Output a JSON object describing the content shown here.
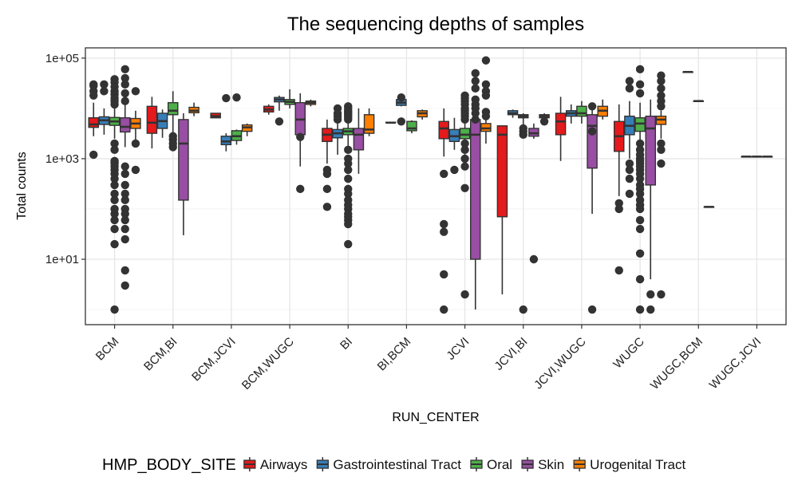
{
  "chart_data": {
    "type": "boxplot",
    "title": "The sequencing depths of samples",
    "xlabel": "RUN_CENTER",
    "ylabel": "Total counts",
    "y_scale": "log10",
    "ylim": [
      0.5,
      160000
    ],
    "y_ticks": [
      10,
      1000,
      100000
    ],
    "y_tick_labels": [
      "1e+01",
      "1e+03",
      "1e+05"
    ],
    "grid": true,
    "legend": {
      "title": "HMP_BODY_SITE",
      "position": "bottom",
      "entries": [
        {
          "name": "Airways",
          "color": "#e41a1c"
        },
        {
          "name": "Gastrointestinal Tract",
          "color": "#377eb8"
        },
        {
          "name": "Oral",
          "color": "#4daf4a"
        },
        {
          "name": "Skin",
          "color": "#984ea3"
        },
        {
          "name": "Urogenital Tract",
          "color": "#ff7f00"
        }
      ]
    },
    "categories": [
      "BCM",
      "BCM,BI",
      "BCM,JCVI",
      "BCM,WUGC",
      "BI",
      "BI,BCM",
      "JCVI",
      "JCVI,BI",
      "JCVI,WUGC",
      "WUGC",
      "WUGC,BCM",
      "WUGC,JCVI"
    ],
    "groups": [
      {
        "category": "BCM",
        "boxes": [
          {
            "site": "Airways",
            "whisker_low": 2800,
            "q1": 4200,
            "median": 4800,
            "q3": 6500,
            "whisker_high": 13000,
            "outliers": [
              1200,
              30000,
              28000,
              22000,
              18000
            ]
          },
          {
            "site": "Gastrointestinal Tract",
            "whisker_low": 3000,
            "q1": 4800,
            "median": 5800,
            "q3": 6800,
            "whisker_high": 10000,
            "outliers": [
              30000,
              22000
            ]
          },
          {
            "site": "Oral",
            "whisker_low": 2500,
            "q1": 4600,
            "median": 5500,
            "q3": 6600,
            "whisker_high": 10000,
            "outliers": [
              38000,
              33000,
              27000,
              22000,
              19000,
              16000,
              14000,
              12000,
              2000,
              1500,
              900,
              850,
              800,
              700,
              600,
              500,
              400,
              300,
              200,
              150,
              100,
              80,
              60,
              40,
              20,
              1
            ]
          },
          {
            "site": "Skin",
            "whisker_low": 1700,
            "q1": 3400,
            "median": 4300,
            "q3": 6500,
            "whisker_high": 12000,
            "outliers": [
              60000,
              40000,
              30000,
              20000,
              14000,
              700,
              500,
              300,
              200,
              150,
              100,
              80,
              60,
              40,
              25,
              6,
              3
            ]
          },
          {
            "site": "Urogenital Tract",
            "whisker_low": 2000,
            "q1": 4000,
            "median": 5000,
            "q3": 6300,
            "whisker_high": 9000,
            "outliers": [
              22000,
              2000,
              600
            ]
          }
        ]
      },
      {
        "category": "BCM,BI",
        "boxes": [
          {
            "site": "Airways",
            "whisker_low": 1600,
            "q1": 3200,
            "median": 5200,
            "q3": 11000,
            "whisker_high": 17000,
            "outliers": []
          },
          {
            "site": "Gastrointestinal Tract",
            "whisker_low": 2600,
            "q1": 4000,
            "median": 5600,
            "q3": 8000,
            "whisker_high": 9500,
            "outliers": []
          },
          {
            "site": "Oral",
            "whisker_low": 2800,
            "q1": 7500,
            "median": 9000,
            "q3": 13000,
            "whisker_high": 22000,
            "outliers": [
              2800,
              2400,
              2000,
              1700
            ]
          },
          {
            "site": "Skin",
            "whisker_low": 30,
            "q1": 150,
            "median": 2000,
            "q3": 6000,
            "whisker_high": 8000,
            "outliers": []
          },
          {
            "site": "Urogenital Tract",
            "whisker_low": 7000,
            "q1": 8200,
            "median": 9000,
            "q3": 10500,
            "whisker_high": 13000,
            "outliers": []
          }
        ]
      },
      {
        "category": "BCM,JCVI",
        "boxes": [
          {
            "site": "Airways",
            "whisker_low": 6500,
            "q1": 6500,
            "median": 7000,
            "q3": 8000,
            "whisker_high": 8000,
            "outliers": []
          },
          {
            "site": "Gastrointestinal Tract",
            "whisker_low": 1400,
            "q1": 1900,
            "median": 2200,
            "q3": 2800,
            "whisker_high": 3200,
            "outliers": [
              16000
            ]
          },
          {
            "site": "Oral",
            "whisker_low": 1900,
            "q1": 2300,
            "median": 2800,
            "q3": 3600,
            "whisker_high": 3800,
            "outliers": [
              16500
            ]
          },
          {
            "site": "Urogenital Tract",
            "whisker_low": 2800,
            "q1": 3500,
            "median": 4200,
            "q3": 4700,
            "whisker_high": 5000,
            "outliers": []
          }
        ]
      },
      {
        "category": "BCM,WUGC",
        "boxes": [
          {
            "site": "Airways",
            "whisker_low": 7500,
            "q1": 8500,
            "median": 9500,
            "q3": 11000,
            "whisker_high": 12000,
            "outliers": []
          },
          {
            "site": "Gastrointestinal Tract",
            "whisker_low": 9000,
            "q1": 13500,
            "median": 15000,
            "q3": 16500,
            "whisker_high": 18000,
            "outliers": [
              5500
            ]
          },
          {
            "site": "Oral",
            "whisker_low": 10000,
            "q1": 12000,
            "median": 13500,
            "q3": 15000,
            "whisker_high": 24000,
            "outliers": []
          },
          {
            "site": "Skin",
            "whisker_low": 700,
            "q1": 3000,
            "median": 6000,
            "q3": 13000,
            "whisker_high": 20000,
            "outliers": [
              2700,
              250
            ]
          },
          {
            "site": "Urogenital Tract",
            "whisker_low": 11000,
            "q1": 12000,
            "median": 13000,
            "q3": 14000,
            "whisker_high": 15000,
            "outliers": []
          }
        ]
      },
      {
        "category": "BI",
        "boxes": [
          {
            "site": "Airways",
            "whisker_low": 800,
            "q1": 2200,
            "median": 3000,
            "q3": 4000,
            "whisker_high": 6000,
            "outliers": [
              600,
              500,
              250,
              110
            ]
          },
          {
            "site": "Gastrointestinal Tract",
            "whisker_low": 1200,
            "q1": 2600,
            "median": 3200,
            "q3": 3800,
            "whisker_high": 5000,
            "outliers": [
              10000,
              8000,
              7000,
              6000
            ]
          },
          {
            "site": "Oral",
            "whisker_low": 1600,
            "q1": 3000,
            "median": 3500,
            "q3": 4000,
            "whisker_high": 5000,
            "outliers": [
              11000,
              10000,
              9000,
              8500,
              8000,
              7500,
              7000,
              6500,
              6000,
              1500,
              1000,
              800,
              600,
              400,
              250,
              200,
              150,
              120,
              100,
              80,
              70,
              60,
              50,
              20
            ]
          },
          {
            "site": "Skin",
            "whisker_low": 500,
            "q1": 1500,
            "median": 3000,
            "q3": 4000,
            "whisker_high": 10000,
            "outliers": []
          },
          {
            "site": "Urogenital Tract",
            "whisker_low": 2800,
            "q1": 3200,
            "median": 3800,
            "q3": 7500,
            "whisker_high": 10000,
            "outliers": []
          }
        ]
      },
      {
        "category": "BI,BCM",
        "boxes": [
          {
            "site": "Airways",
            "whisker_low": 5200,
            "q1": 5200,
            "median": 5200,
            "q3": 5300,
            "whisker_high": 5300,
            "outliers": []
          },
          {
            "site": "Gastrointestinal Tract",
            "whisker_low": 11000,
            "q1": 11500,
            "median": 13000,
            "q3": 15000,
            "whisker_high": 16000,
            "outliers": [
              5500,
              16500
            ]
          },
          {
            "site": "Oral",
            "whisker_low": 3200,
            "q1": 3600,
            "median": 4000,
            "q3": 5500,
            "whisker_high": 5800,
            "outliers": []
          },
          {
            "site": "Urogenital Tract",
            "whisker_low": 6000,
            "q1": 6800,
            "median": 8000,
            "q3": 9000,
            "whisker_high": 9500,
            "outliers": []
          }
        ]
      },
      {
        "category": "JCVI",
        "boxes": [
          {
            "site": "Airways",
            "whisker_low": 1100,
            "q1": 2500,
            "median": 4000,
            "q3": 5500,
            "whisker_high": 10000,
            "outliers": [
              500,
              50,
              35,
              5,
              1
            ]
          },
          {
            "site": "Gastrointestinal Tract",
            "whisker_low": 1500,
            "q1": 2200,
            "median": 2800,
            "q3": 3800,
            "whisker_high": 6500,
            "outliers": [
              600
            ]
          },
          {
            "site": "Oral",
            "whisker_low": 800,
            "q1": 2500,
            "median": 3000,
            "q3": 4000,
            "whisker_high": 5500,
            "outliers": [
              18000,
              16000,
              14000,
              12000,
              10000,
              9000,
              8000,
              7000,
              6000,
              2000,
              1500,
              1000,
              700,
              260,
              2
            ]
          },
          {
            "site": "Skin",
            "whisker_low": 1,
            "q1": 10,
            "median": 3000,
            "q3": 6000,
            "whisker_high": 15000,
            "outliers": [
              50000,
              35000,
              25000,
              15000,
              12000,
              10000,
              8000,
              6000
            ]
          },
          {
            "site": "Urogenital Tract",
            "whisker_low": 2000,
            "q1": 3500,
            "median": 4000,
            "q3": 5000,
            "whisker_high": 8000,
            "outliers": [
              90000,
              30000,
              22000,
              18000,
              8500,
              7000
            ]
          }
        ]
      },
      {
        "category": "JCVI,BI",
        "boxes": [
          {
            "site": "Airways",
            "whisker_low": 2,
            "q1": 70,
            "median": 3000,
            "q3": 4500,
            "whisker_high": 4500,
            "outliers": []
          },
          {
            "site": "Gastrointestinal Tract",
            "whisker_low": 6500,
            "q1": 7500,
            "median": 8000,
            "q3": 9000,
            "whisker_high": 9500,
            "outliers": []
          },
          {
            "site": "Oral",
            "whisker_low": 4000,
            "q1": 6500,
            "median": 7000,
            "q3": 7500,
            "whisker_high": 8000,
            "outliers": [
              4000,
              3500,
              3000,
              1
            ]
          },
          {
            "site": "Skin",
            "whisker_low": 2500,
            "q1": 2800,
            "median": 3200,
            "q3": 4000,
            "whisker_high": 5000,
            "outliers": [
              10
            ]
          },
          {
            "site": "Urogenital Tract",
            "whisker_low": 6000,
            "q1": 6500,
            "median": 7000,
            "q3": 7500,
            "whisker_high": 8000,
            "outliers": [
              5500
            ]
          }
        ]
      },
      {
        "category": "JCVI,WUGC",
        "boxes": [
          {
            "site": "Airways",
            "whisker_low": 900,
            "q1": 3000,
            "median": 5500,
            "q3": 8000,
            "whisker_high": 17000,
            "outliers": []
          },
          {
            "site": "Gastrointestinal Tract",
            "whisker_low": 5000,
            "q1": 7000,
            "median": 8000,
            "q3": 9000,
            "whisker_high": 12000,
            "outliers": []
          },
          {
            "site": "Oral",
            "whisker_low": 5000,
            "q1": 7000,
            "median": 8000,
            "q3": 11000,
            "whisker_high": 14000,
            "outliers": []
          },
          {
            "site": "Skin",
            "whisker_low": 80,
            "q1": 650,
            "median": 4500,
            "q3": 7500,
            "whisker_high": 11000,
            "outliers": [
              11000,
              3500,
              1
            ]
          },
          {
            "site": "Urogenital Tract",
            "whisker_low": 6000,
            "q1": 7000,
            "median": 9000,
            "q3": 11000,
            "whisker_high": 15000,
            "outliers": []
          }
        ]
      },
      {
        "category": "WUGC",
        "boxes": [
          {
            "site": "Airways",
            "whisker_low": 180,
            "q1": 1400,
            "median": 2800,
            "q3": 5500,
            "whisker_high": 12000,
            "outliers": [
              130,
              100,
              6
            ]
          },
          {
            "site": "Gastrointestinal Tract",
            "whisker_low": 1000,
            "q1": 3000,
            "median": 4500,
            "q3": 7000,
            "whisker_high": 14000,
            "outliers": [
              35000,
              25000,
              800,
              600,
              400,
              200
            ]
          },
          {
            "site": "Oral",
            "whisker_low": 1200,
            "q1": 3500,
            "median": 5000,
            "q3": 6500,
            "whisker_high": 13000,
            "outliers": [
              60000,
              30000,
              20000,
              2000,
              1500,
              1200,
              1000,
              900,
              800,
              700,
              600,
              500,
              400,
              300,
              250,
              200,
              150,
              120,
              100,
              60,
              40,
              13,
              4,
              1
            ]
          },
          {
            "site": "Skin",
            "whisker_low": 4,
            "q1": 300,
            "median": 4000,
            "q3": 7000,
            "whisker_high": 15000,
            "outliers": [
              1,
              2
            ]
          },
          {
            "site": "Urogenital Tract",
            "whisker_low": 2500,
            "q1": 4800,
            "median": 6000,
            "q3": 7000,
            "whisker_high": 9000,
            "outliers": [
              45000,
              35000,
              25000,
              18000,
              14000,
              11000,
              2000,
              1500,
              800,
              2
            ]
          }
        ]
      },
      {
        "category": "WUGC,BCM",
        "boxes": [
          {
            "site": "Airways",
            "whisker_low": 53000,
            "q1": 53000,
            "median": 53000,
            "q3": 53000,
            "whisker_high": 53000,
            "outliers": []
          },
          {
            "site": "Gastrointestinal Tract",
            "whisker_low": 14000,
            "q1": 14000,
            "median": 14000,
            "q3": 14000,
            "whisker_high": 14000,
            "outliers": []
          },
          {
            "site": "Skin",
            "whisker_low": 110,
            "q1": 110,
            "median": 110,
            "q3": 110,
            "whisker_high": 110,
            "outliers": []
          }
        ]
      },
      {
        "category": "WUGC,JCVI",
        "boxes": [
          {
            "site": "Oral",
            "whisker_low": 1100,
            "q1": 1100,
            "median": 1100,
            "q3": 1100,
            "whisker_high": 1100,
            "outliers": []
          },
          {
            "site": "Skin",
            "whisker_low": 1100,
            "q1": 1100,
            "median": 1100,
            "q3": 1100,
            "whisker_high": 1100,
            "outliers": []
          },
          {
            "site": "Urogenital Tract",
            "whisker_low": 1100,
            "q1": 1100,
            "median": 1100,
            "q3": 1100,
            "whisker_high": 1100,
            "outliers": []
          }
        ]
      }
    ]
  }
}
